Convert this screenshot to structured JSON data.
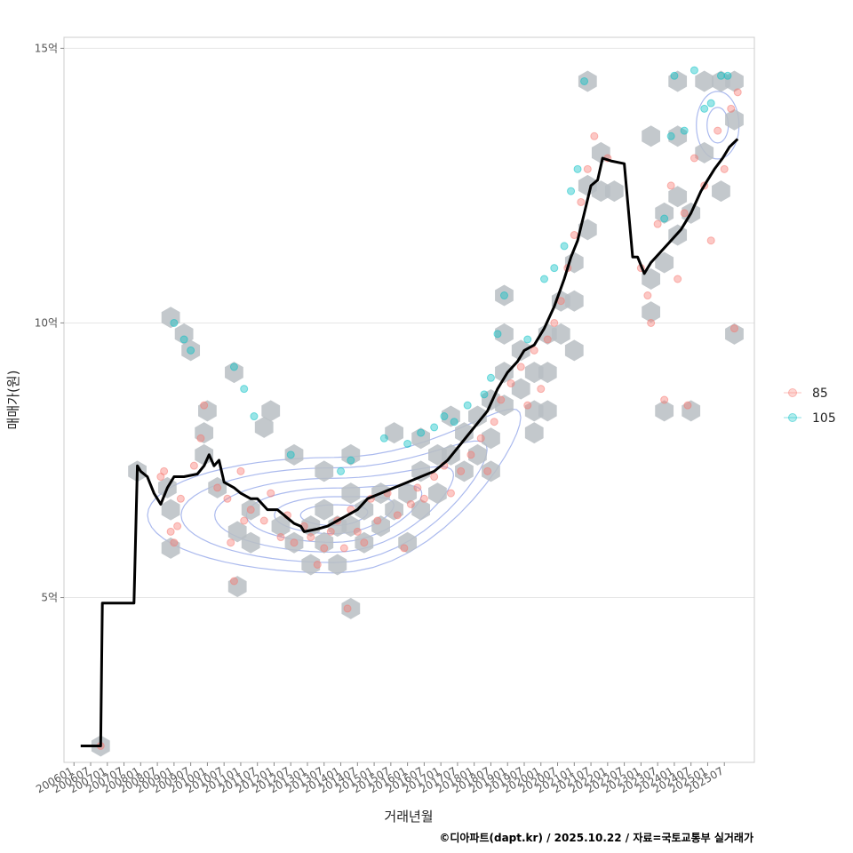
{
  "chart_data": {
    "type": "scatter",
    "title": "",
    "xlabel": "거래년월",
    "ylabel": "매매가(원)",
    "caption": "©디아파트(dapt.kr) / 2025.10.22 / 자료=국토교통부 실거래가",
    "ylim": [
      2.0,
      15.2
    ],
    "xlim": [
      2005.7,
      2026.4
    ],
    "y_ticks": [
      {
        "value": 5,
        "label": "5억"
      },
      {
        "value": 10,
        "label": "10억"
      },
      {
        "value": 15,
        "label": "15억"
      }
    ],
    "x_ticks": [
      "200601",
      "200607",
      "200701",
      "200707",
      "200801",
      "200807",
      "200901",
      "200907",
      "201001",
      "201007",
      "201101",
      "201107",
      "201201",
      "201207",
      "201301",
      "201307",
      "201401",
      "201407",
      "201501",
      "201507",
      "201601",
      "201607",
      "201701",
      "201707",
      "201801",
      "201807",
      "201901",
      "201907",
      "202001",
      "202007",
      "202101",
      "202107",
      "202201",
      "202207",
      "202301",
      "202307",
      "202401",
      "202407",
      "202501",
      "202507"
    ],
    "legend": {
      "position": "right",
      "entries": [
        {
          "label": "85",
          "color": "#F8766D"
        },
        {
          "label": "105",
          "color": "#00BFC4"
        }
      ]
    },
    "colors": {
      "line": "#000000",
      "hex": "#B9BEC3",
      "contour": "#8FA3E8",
      "grid": "#E6E6E6"
    },
    "trend_line": [
      [
        2006.2,
        2.3
      ],
      [
        2006.8,
        2.3
      ],
      [
        2006.85,
        4.9
      ],
      [
        2007.8,
        4.9
      ],
      [
        2007.9,
        7.4
      ],
      [
        2008.0,
        7.3
      ],
      [
        2008.2,
        7.2
      ],
      [
        2008.4,
        6.9
      ],
      [
        2008.6,
        6.7
      ],
      [
        2008.8,
        7.0
      ],
      [
        2009.0,
        7.2
      ],
      [
        2009.3,
        7.2
      ],
      [
        2009.7,
        7.25
      ],
      [
        2009.9,
        7.4
      ],
      [
        2010.05,
        7.6
      ],
      [
        2010.2,
        7.4
      ],
      [
        2010.35,
        7.5
      ],
      [
        2010.5,
        7.1
      ],
      [
        2010.8,
        7.0
      ],
      [
        2011.0,
        6.9
      ],
      [
        2011.3,
        6.8
      ],
      [
        2011.5,
        6.8
      ],
      [
        2011.8,
        6.6
      ],
      [
        2012.1,
        6.6
      ],
      [
        2012.3,
        6.5
      ],
      [
        2012.6,
        6.35
      ],
      [
        2012.8,
        6.3
      ],
      [
        2012.9,
        6.2
      ],
      [
        2013.3,
        6.25
      ],
      [
        2013.6,
        6.3
      ],
      [
        2013.9,
        6.4
      ],
      [
        2014.2,
        6.5
      ],
      [
        2014.5,
        6.6
      ],
      [
        2014.8,
        6.8
      ],
      [
        2015.2,
        6.9
      ],
      [
        2015.6,
        7.0
      ],
      [
        2016.0,
        7.1
      ],
      [
        2016.4,
        7.2
      ],
      [
        2016.8,
        7.3
      ],
      [
        2017.2,
        7.5
      ],
      [
        2017.6,
        7.8
      ],
      [
        2018.0,
        8.1
      ],
      [
        2018.4,
        8.4
      ],
      [
        2018.7,
        8.8
      ],
      [
        2019.0,
        9.1
      ],
      [
        2019.3,
        9.3
      ],
      [
        2019.5,
        9.5
      ],
      [
        2019.8,
        9.6
      ],
      [
        2020.1,
        9.9
      ],
      [
        2020.4,
        10.3
      ],
      [
        2020.7,
        10.8
      ],
      [
        2020.9,
        11.2
      ],
      [
        2021.1,
        11.5
      ],
      [
        2021.3,
        12.0
      ],
      [
        2021.5,
        12.5
      ],
      [
        2021.7,
        12.6
      ],
      [
        2021.85,
        13.0
      ],
      [
        2022.1,
        12.95
      ],
      [
        2022.5,
        12.9
      ],
      [
        2022.75,
        11.2
      ],
      [
        2022.9,
        11.2
      ],
      [
        2023.1,
        10.9
      ],
      [
        2023.3,
        11.1
      ],
      [
        2023.6,
        11.3
      ],
      [
        2023.9,
        11.5
      ],
      [
        2024.2,
        11.7
      ],
      [
        2024.5,
        12.0
      ],
      [
        2024.8,
        12.4
      ],
      [
        2025.0,
        12.6
      ],
      [
        2025.2,
        12.8
      ],
      [
        2025.45,
        13.0
      ],
      [
        2025.65,
        13.2
      ],
      [
        2025.9,
        13.35
      ]
    ],
    "series": [
      {
        "name": "85",
        "points": [
          [
            2006.8,
            2.3
          ],
          [
            2008.6,
            7.2
          ],
          [
            2008.7,
            7.3
          ],
          [
            2008.9,
            6.2
          ],
          [
            2009.0,
            6.0
          ],
          [
            2009.1,
            6.3
          ],
          [
            2009.2,
            6.8
          ],
          [
            2009.6,
            7.4
          ],
          [
            2009.8,
            7.9
          ],
          [
            2009.9,
            8.5
          ],
          [
            2010.3,
            7.0
          ],
          [
            2010.6,
            6.8
          ],
          [
            2010.7,
            6.0
          ],
          [
            2010.8,
            5.3
          ],
          [
            2011.0,
            7.3
          ],
          [
            2011.1,
            6.4
          ],
          [
            2011.3,
            6.6
          ],
          [
            2011.7,
            6.4
          ],
          [
            2011.9,
            6.9
          ],
          [
            2012.2,
            6.1
          ],
          [
            2012.4,
            6.5
          ],
          [
            2012.6,
            6.0
          ],
          [
            2012.9,
            6.3
          ],
          [
            2013.1,
            6.1
          ],
          [
            2013.3,
            5.6
          ],
          [
            2013.5,
            5.9
          ],
          [
            2013.7,
            6.2
          ],
          [
            2013.9,
            6.4
          ],
          [
            2014.1,
            5.9
          ],
          [
            2014.2,
            4.8
          ],
          [
            2014.3,
            6.6
          ],
          [
            2014.5,
            6.2
          ],
          [
            2014.7,
            6.0
          ],
          [
            2014.9,
            6.8
          ],
          [
            2015.1,
            6.4
          ],
          [
            2015.4,
            6.9
          ],
          [
            2015.7,
            6.5
          ],
          [
            2015.9,
            5.9
          ],
          [
            2016.1,
            6.7
          ],
          [
            2016.3,
            7.0
          ],
          [
            2016.5,
            6.8
          ],
          [
            2016.8,
            7.2
          ],
          [
            2017.1,
            7.4
          ],
          [
            2017.3,
            6.9
          ],
          [
            2017.6,
            7.3
          ],
          [
            2017.9,
            7.6
          ],
          [
            2018.2,
            7.9
          ],
          [
            2018.4,
            7.3
          ],
          [
            2018.6,
            8.2
          ],
          [
            2018.8,
            8.6
          ],
          [
            2019.1,
            8.9
          ],
          [
            2019.4,
            9.2
          ],
          [
            2019.6,
            8.5
          ],
          [
            2019.8,
            9.5
          ],
          [
            2020.0,
            8.8
          ],
          [
            2020.2,
            9.7
          ],
          [
            2020.4,
            10.0
          ],
          [
            2020.6,
            10.4
          ],
          [
            2020.8,
            11.0
          ],
          [
            2021.0,
            11.6
          ],
          [
            2021.2,
            12.2
          ],
          [
            2021.4,
            12.8
          ],
          [
            2021.6,
            13.4
          ],
          [
            2022.0,
            13.0
          ],
          [
            2023.0,
            11.0
          ],
          [
            2023.2,
            10.5
          ],
          [
            2023.3,
            10.0
          ],
          [
            2023.5,
            11.8
          ],
          [
            2023.7,
            8.6
          ],
          [
            2023.9,
            12.5
          ],
          [
            2024.1,
            10.8
          ],
          [
            2024.3,
            12.0
          ],
          [
            2024.4,
            8.5
          ],
          [
            2024.6,
            13.0
          ],
          [
            2024.9,
            12.5
          ],
          [
            2025.1,
            11.5
          ],
          [
            2025.3,
            13.5
          ],
          [
            2025.5,
            12.8
          ],
          [
            2025.7,
            13.9
          ],
          [
            2025.9,
            14.2
          ],
          [
            2025.8,
            9.9
          ]
        ]
      },
      {
        "name": "105",
        "points": [
          [
            2009.0,
            10.0
          ],
          [
            2009.3,
            9.7
          ],
          [
            2009.5,
            9.5
          ],
          [
            2010.8,
            9.2
          ],
          [
            2011.1,
            8.8
          ],
          [
            2011.4,
            8.3
          ],
          [
            2012.5,
            7.6
          ],
          [
            2014.0,
            7.3
          ],
          [
            2014.3,
            7.5
          ],
          [
            2015.3,
            7.9
          ],
          [
            2016.0,
            7.8
          ],
          [
            2016.4,
            8.0
          ],
          [
            2016.8,
            8.1
          ],
          [
            2017.1,
            8.3
          ],
          [
            2017.4,
            8.2
          ],
          [
            2017.8,
            8.5
          ],
          [
            2018.3,
            8.7
          ],
          [
            2018.5,
            9.0
          ],
          [
            2018.7,
            9.8
          ],
          [
            2018.9,
            10.5
          ],
          [
            2019.6,
            9.7
          ],
          [
            2020.1,
            10.8
          ],
          [
            2020.4,
            11.0
          ],
          [
            2020.7,
            11.4
          ],
          [
            2020.9,
            12.4
          ],
          [
            2021.1,
            12.8
          ],
          [
            2021.3,
            14.4
          ],
          [
            2023.7,
            11.9
          ],
          [
            2023.9,
            13.4
          ],
          [
            2024.0,
            14.5
          ],
          [
            2024.3,
            13.5
          ],
          [
            2024.6,
            14.6
          ],
          [
            2024.9,
            13.9
          ],
          [
            2025.1,
            14.0
          ],
          [
            2025.4,
            14.5
          ],
          [
            2025.6,
            14.5
          ]
        ]
      }
    ],
    "hexbins": [
      [
        2006.8,
        2.3
      ],
      [
        2007.9,
        7.3
      ],
      [
        2008.8,
        7.0
      ],
      [
        2008.9,
        6.6
      ],
      [
        2008.9,
        5.9
      ],
      [
        2008.9,
        10.1
      ],
      [
        2009.3,
        9.8
      ],
      [
        2009.5,
        9.5
      ],
      [
        2009.9,
        8.0
      ],
      [
        2010.0,
        8.4
      ],
      [
        2009.9,
        7.6
      ],
      [
        2010.3,
        7.0
      ],
      [
        2010.8,
        9.1
      ],
      [
        2010.9,
        6.2
      ],
      [
        2010.9,
        5.2
      ],
      [
        2011.3,
        6.6
      ],
      [
        2011.3,
        6.0
      ],
      [
        2011.7,
        8.1
      ],
      [
        2011.9,
        8.4
      ],
      [
        2012.2,
        6.3
      ],
      [
        2012.6,
        7.6
      ],
      [
        2012.6,
        6.0
      ],
      [
        2013.1,
        6.3
      ],
      [
        2013.1,
        5.6
      ],
      [
        2013.5,
        7.3
      ],
      [
        2013.5,
        6.6
      ],
      [
        2013.5,
        6.0
      ],
      [
        2013.9,
        6.3
      ],
      [
        2013.9,
        5.6
      ],
      [
        2014.3,
        7.6
      ],
      [
        2014.3,
        6.9
      ],
      [
        2014.3,
        6.3
      ],
      [
        2014.3,
        4.8
      ],
      [
        2014.7,
        6.6
      ],
      [
        2014.7,
        6.0
      ],
      [
        2015.2,
        6.9
      ],
      [
        2015.2,
        6.3
      ],
      [
        2015.6,
        8.0
      ],
      [
        2015.6,
        6.6
      ],
      [
        2016.0,
        6.9
      ],
      [
        2016.0,
        6.0
      ],
      [
        2016.4,
        7.9
      ],
      [
        2016.4,
        7.3
      ],
      [
        2016.4,
        6.6
      ],
      [
        2016.9,
        7.6
      ],
      [
        2016.9,
        6.9
      ],
      [
        2017.3,
        8.3
      ],
      [
        2017.3,
        7.6
      ],
      [
        2017.7,
        8.0
      ],
      [
        2017.7,
        7.3
      ],
      [
        2018.1,
        8.3
      ],
      [
        2018.1,
        7.6
      ],
      [
        2018.5,
        8.6
      ],
      [
        2018.5,
        7.9
      ],
      [
        2018.5,
        7.3
      ],
      [
        2018.9,
        10.5
      ],
      [
        2018.9,
        9.8
      ],
      [
        2018.9,
        9.1
      ],
      [
        2018.9,
        8.5
      ],
      [
        2019.4,
        9.5
      ],
      [
        2019.4,
        8.8
      ],
      [
        2019.8,
        9.1
      ],
      [
        2019.8,
        8.4
      ],
      [
        2019.8,
        8.0
      ],
      [
        2020.2,
        9.8
      ],
      [
        2020.2,
        9.1
      ],
      [
        2020.2,
        8.4
      ],
      [
        2020.6,
        10.4
      ],
      [
        2020.6,
        9.8
      ],
      [
        2021.0,
        11.1
      ],
      [
        2021.0,
        10.4
      ],
      [
        2021.0,
        9.5
      ],
      [
        2021.4,
        12.5
      ],
      [
        2021.4,
        11.7
      ],
      [
        2021.4,
        14.4
      ],
      [
        2021.8,
        13.1
      ],
      [
        2021.8,
        12.4
      ],
      [
        2022.2,
        12.4
      ],
      [
        2023.3,
        13.4
      ],
      [
        2023.3,
        10.8
      ],
      [
        2023.3,
        10.2
      ],
      [
        2023.7,
        12.0
      ],
      [
        2023.7,
        11.1
      ],
      [
        2023.7,
        8.4
      ],
      [
        2024.1,
        12.3
      ],
      [
        2024.1,
        11.6
      ],
      [
        2024.1,
        14.4
      ],
      [
        2024.1,
        13.4
      ],
      [
        2024.5,
        12.0
      ],
      [
        2024.5,
        8.4
      ],
      [
        2024.9,
        14.4
      ],
      [
        2024.9,
        13.1
      ],
      [
        2025.4,
        14.4
      ],
      [
        2025.4,
        12.4
      ],
      [
        2025.8,
        14.4
      ],
      [
        2025.8,
        13.7
      ],
      [
        2025.8,
        9.8
      ]
    ]
  }
}
